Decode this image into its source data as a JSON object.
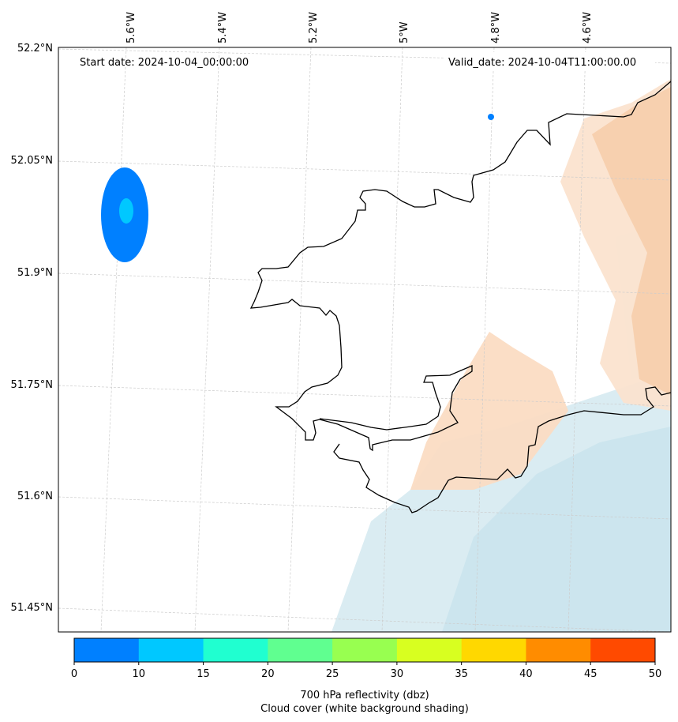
{
  "map": {
    "start_date": "Start date: 2024-10-04_00:00:00",
    "valid_date": "Valid_date: 2024-10-04T11:00:00.00",
    "lon_labels": [
      "5.6°W",
      "5.4°W",
      "5.2°W",
      "5°W",
      "4.8°W",
      "4.6°W"
    ],
    "lat_labels": [
      "52.2°N",
      "52.05°N",
      "51.9°N",
      "51.75°N",
      "51.6°N",
      "51.45°N"
    ]
  },
  "colorbar": {
    "ticks": [
      "0",
      "10",
      "15",
      "20",
      "25",
      "30",
      "35",
      "40",
      "45",
      "50"
    ],
    "colors": [
      "#0080ff",
      "#00c8ff",
      "#20ffd0",
      "#60ff90",
      "#98ff50",
      "#d8ff20",
      "#ffd800",
      "#ff8c00",
      "#ff4a00"
    ],
    "label_line1": "700 hPa reflectivity (dbz)",
    "label_line2": "Cloud cover (white background shading)"
  },
  "colors": {
    "sea_cloud": "#cfe6ee",
    "land_cloud": "#f8cfa8",
    "coast": "#000000",
    "grid": "#cccccc"
  }
}
